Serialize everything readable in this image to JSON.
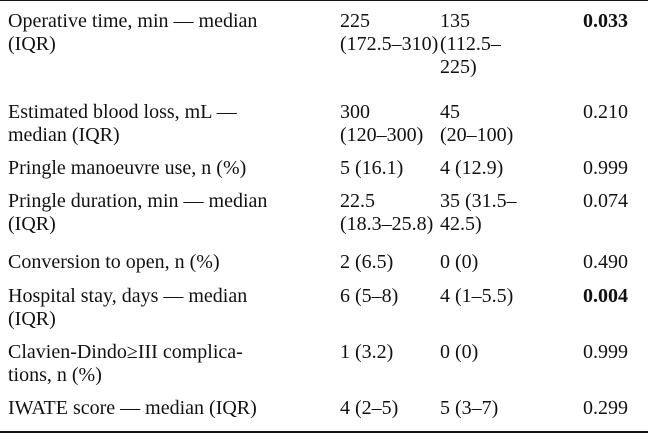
{
  "table": {
    "rows": [
      {
        "cells": [
          [
            "Operative time, min — median",
            "(IQR)"
          ],
          [
            "225",
            "(172.5–310)"
          ],
          [
            "135",
            "(112.5–",
            "225)"
          ],
          [
            "0.033"
          ]
        ],
        "p_bold": true
      },
      {
        "cells": [
          [
            "Estimated blood loss, mL —",
            "median (IQR)"
          ],
          [
            "300",
            "(120–300)"
          ],
          [
            "45",
            "(20–100)"
          ],
          [
            "0.210"
          ]
        ],
        "p_bold": false
      },
      {
        "cells": [
          [
            "Pringle manoeuvre use, n (%)"
          ],
          [
            "5 (16.1)"
          ],
          [
            "4 (12.9)"
          ],
          [
            "0.999"
          ]
        ],
        "p_bold": false
      },
      {
        "cells": [
          [
            "Pringle duration, min — median",
            "(IQR)"
          ],
          [
            "22.5",
            "(18.3–25.8)"
          ],
          [
            "35 (31.5–",
            "42.5)"
          ],
          [
            "0.074"
          ]
        ],
        "p_bold": false
      },
      {
        "cells": [
          [
            "Conversion to open, n (%)"
          ],
          [
            "2 (6.5)"
          ],
          [
            "0 (0)"
          ],
          [
            "0.490"
          ]
        ],
        "p_bold": false
      },
      {
        "cells": [
          [
            "Hospital stay, days — median",
            "(IQR)"
          ],
          [
            "6 (5–8)"
          ],
          [
            "4 (1–5.5)"
          ],
          [
            "0.004"
          ]
        ],
        "p_bold": true
      },
      {
        "cells": [
          [
            "Clavien-Dindo≥III complica-",
            "tions, n (%)"
          ],
          [
            "1 (3.2)"
          ],
          [
            "0 (0)"
          ],
          [
            "0.999"
          ]
        ],
        "p_bold": false
      },
      {
        "cells": [
          [
            "IWATE score — median (IQR)"
          ],
          [
            "4 (2–5)"
          ],
          [
            "5 (3–7)"
          ],
          [
            "0.299"
          ]
        ],
        "p_bold": false
      }
    ]
  }
}
